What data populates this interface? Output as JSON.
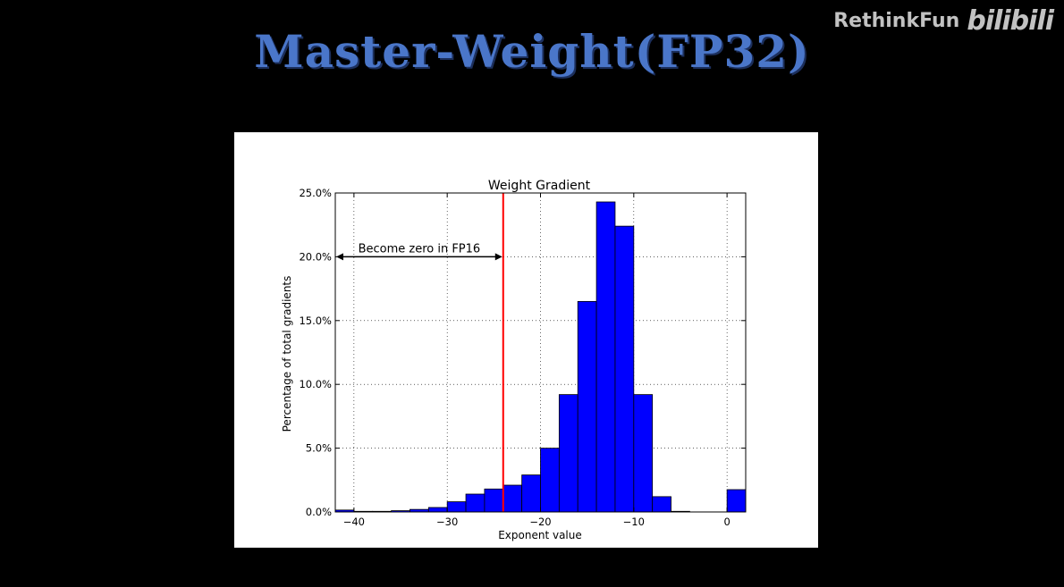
{
  "slide": {
    "title": "Master-Weight(FP32)",
    "watermark_author": "RethinkFun",
    "watermark_logo": "bilibili"
  },
  "chart_data": {
    "type": "bar",
    "title": "Weight Gradient",
    "xlabel": "Exponent value",
    "ylabel": "Percentage of total gradients",
    "xlim": [
      -42,
      2
    ],
    "ylim": [
      0,
      25
    ],
    "xticks": [
      -40,
      -30,
      -20,
      -10,
      0
    ],
    "xtick_labels": [
      "−40",
      "−30",
      "−20",
      "−10",
      "0"
    ],
    "yticks": [
      0,
      5,
      10,
      15,
      20,
      25
    ],
    "ytick_labels": [
      "0.0%",
      "5.0%",
      "10.0%",
      "15.0%",
      "20.0%",
      "25.0%"
    ],
    "grid": true,
    "bar_color": "#0000ff",
    "bin_width": 2,
    "bins": [
      {
        "x0": -42,
        "value": 0.15
      },
      {
        "x0": -40,
        "value": 0.05
      },
      {
        "x0": -38,
        "value": 0.05
      },
      {
        "x0": -36,
        "value": 0.1
      },
      {
        "x0": -34,
        "value": 0.2
      },
      {
        "x0": -32,
        "value": 0.35
      },
      {
        "x0": -30,
        "value": 0.8
      },
      {
        "x0": -28,
        "value": 1.4
      },
      {
        "x0": -26,
        "value": 1.8
      },
      {
        "x0": -24,
        "value": 2.1
      },
      {
        "x0": -22,
        "value": 2.9
      },
      {
        "x0": -20,
        "value": 5.0
      },
      {
        "x0": -18,
        "value": 9.2
      },
      {
        "x0": -16,
        "value": 16.5
      },
      {
        "x0": -14,
        "value": 24.3
      },
      {
        "x0": -12,
        "value": 22.4
      },
      {
        "x0": -10,
        "value": 9.2
      },
      {
        "x0": -8,
        "value": 1.2
      },
      {
        "x0": -6,
        "value": 0.05
      },
      {
        "x0": 0,
        "value": 1.75
      }
    ],
    "threshold": {
      "x": -24,
      "color": "#ff0000"
    },
    "annotation": {
      "text": "Become zero in FP16",
      "from_x": -42,
      "to_x": -24,
      "y": 20
    }
  }
}
